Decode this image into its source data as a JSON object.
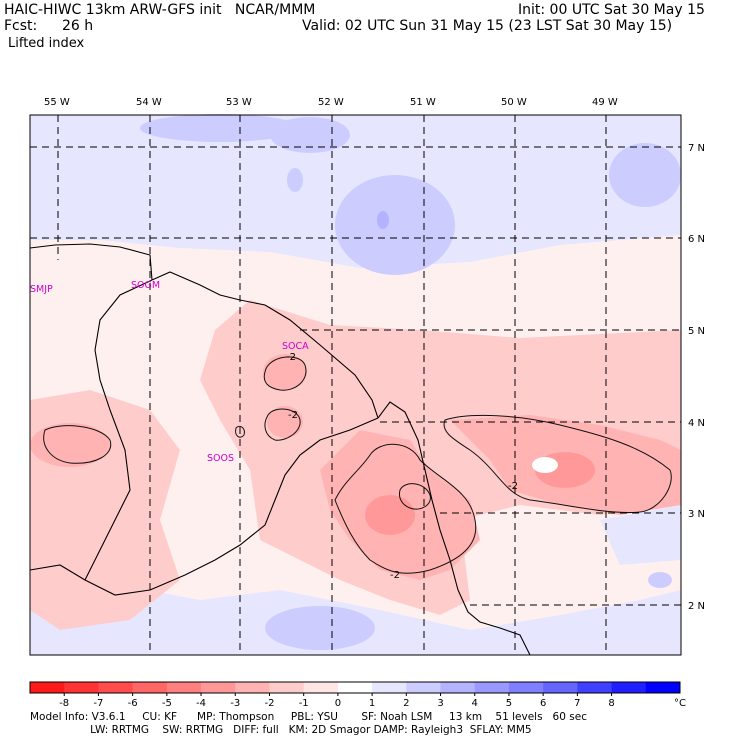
{
  "header": {
    "model_line": "HAIC-HIWC 13km ARW-GFS init   NCAR/MMM",
    "fcst_label": "Fcst:",
    "fcst_value": "26 h",
    "field": "Lifted index",
    "init": "Init: 00 UTC Sat 30 May 15",
    "valid": "Valid: 02 UTC Sun 31 May 15 (23 LST Sat 30 May 15)"
  },
  "map": {
    "lon_labels": [
      "55 W",
      "54 W",
      "53 W",
      "52 W",
      "51 W",
      "50 W",
      "49 W"
    ],
    "lat_labels": [
      "7 N",
      "6 N",
      "5 N",
      "4 N",
      "3 N",
      "2 N"
    ],
    "stations": [
      "SMJP",
      "SOGM",
      "SOCA",
      "SOOS"
    ],
    "contour_labels": [
      "-2",
      "-2",
      "-2",
      "-2"
    ]
  },
  "colorbar": {
    "ticks": [
      "-8",
      "-7",
      "-6",
      "-5",
      "-4",
      "-3",
      "-2",
      "-1",
      "0",
      "1",
      "2",
      "3",
      "4",
      "5",
      "6",
      "7",
      "8"
    ],
    "unit": "°C",
    "colors": [
      "#ff1a1a",
      "#ff3333",
      "#ff4d4d",
      "#ff6666",
      "#ff8080",
      "#ff9999",
      "#ffb3b3",
      "#ffcccc",
      "#ffe6e6",
      "#ffffff",
      "#e6e6ff",
      "#ccccff",
      "#b3b3ff",
      "#9999ff",
      "#7f7fff",
      "#6666ff",
      "#4040ff",
      "#1f1fff",
      "#0000ff"
    ]
  },
  "footer": {
    "line1": "Model Info: V3.6.1     CU: KF      MP: Thompson     PBL: YSU       SF: Noah LSM     13 km    51 levels   60 sec",
    "line2": "                  LW: RRTMG    SW: RRTMG   DIFF: full   KM: 2D Smagor DAMP: Rayleigh3  SFLAY: MM5"
  }
}
